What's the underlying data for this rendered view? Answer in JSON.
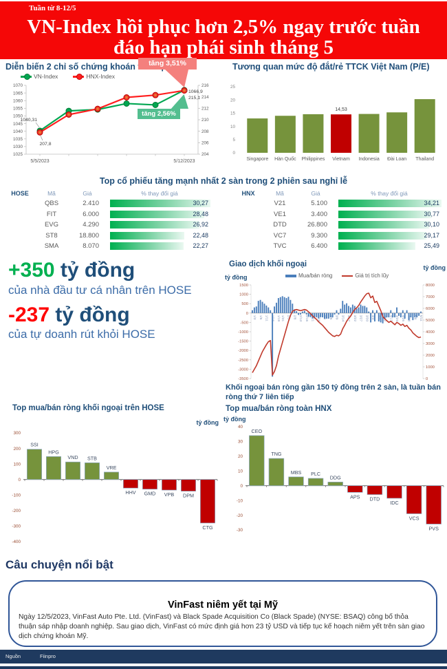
{
  "header": {
    "week_label": "Tuần từ 8-12/5",
    "title_line1": "VN-Index hồi phục hơn 2,5% ngay trước tuần",
    "title_line2": "đáo hạn phái sinh tháng 5"
  },
  "colors": {
    "banner_red": "#F50707",
    "navy": "#1F4E79",
    "green_up": "#00B050",
    "red_down": "#FF0000",
    "olive_bar": "#76933C",
    "highlight_red": "#C00000",
    "flow_bar_blue": "#4A7EBB",
    "flow_line_red": "#C0392B"
  },
  "chart_data": [
    {
      "type": "line",
      "id": "weekly-indices",
      "title": "Diễn biến 2 chỉ số chứng khoán tuần qua",
      "x_labels": [
        "5/5/2023",
        "5/12/2023"
      ],
      "left_axis": {
        "min": 1025,
        "max": 1070,
        "step": 5
      },
      "right_axis": {
        "min": 204,
        "max": 216,
        "step": 2
      },
      "series": [
        {
          "name": "VN-Index",
          "axis": "left",
          "color": "#00A651",
          "values": [
            1040.31,
            1053.3,
            1054.2,
            1058.1,
            1057.2,
            1066.9
          ]
        },
        {
          "name": "HNX-Index",
          "axis": "right",
          "color": "#FF1F1F",
          "values": [
            207.8,
            210.9,
            211.9,
            213.9,
            214.3,
            215.1
          ]
        }
      ],
      "annotations": {
        "start_vn": "1040,31",
        "start_hnx": "207,8",
        "end_vn": "1066,9",
        "end_hnx": "215,1",
        "callout_hnx": "tăng 3,51%",
        "callout_vn": "tăng 2,56%"
      }
    },
    {
      "type": "bar",
      "id": "pe-comparison",
      "title": "Tương quan mức độ đắt/rẻ TTCK Việt Nam (P/E)",
      "categories": [
        "Singapore",
        "Hàn Quốc",
        "Philippines",
        "Vietnam",
        "Indonesia",
        "Đài Loan",
        "Thailand"
      ],
      "values": [
        13.0,
        14.0,
        14.6,
        14.53,
        14.7,
        15.3,
        20.3
      ],
      "highlight_index": 3,
      "highlight_label": "14,53",
      "ylim": [
        0,
        25
      ],
      "step": 5,
      "bar_color": "#76933C",
      "highlight_color": "#C00000"
    },
    {
      "type": "bar+line",
      "id": "foreign-flow",
      "title": "Giao dịch khối ngoại",
      "unit_left": "tỷ đồng",
      "unit_right": "tỷ đồng",
      "legend": [
        "Mua/bán ròng",
        "Giá trị tích lũy"
      ],
      "left_axis": {
        "min": -3500,
        "max": 1500,
        "step": 500
      },
      "right_axis": {
        "min": 0,
        "max": 8000,
        "step": 1000
      },
      "dates": [
        "1/3",
        "1/4",
        "1/5",
        "1/6",
        "1/9",
        "1/10",
        "1/11",
        "1/12",
        "1/13",
        "1/16",
        "1/17",
        "1/18",
        "1/19",
        "1/30",
        "1/31",
        "2/1",
        "2/2",
        "2/3",
        "2/6",
        "2/7",
        "2/8",
        "2/9",
        "2/10",
        "2/13",
        "2/14",
        "2/15",
        "2/16",
        "2/17",
        "2/20",
        "2/21",
        "2/22",
        "2/23",
        "2/24",
        "2/27",
        "2/28",
        "3/1",
        "3/2",
        "3/3",
        "3/6",
        "3/7",
        "3/8",
        "3/9",
        "3/10",
        "3/13",
        "3/14",
        "3/15",
        "3/16",
        "3/17",
        "3/20",
        "3/21",
        "3/22",
        "3/23",
        "3/24",
        "3/27",
        "3/28",
        "3/29",
        "3/30",
        "3/31",
        "4/3",
        "4/4",
        "4/5",
        "4/6",
        "4/7",
        "4/10",
        "4/11",
        "4/12",
        "4/13",
        "4/14",
        "4/17",
        "4/18",
        "4/19",
        "4/20",
        "4/21",
        "4/24",
        "4/25",
        "4/26",
        "4/27",
        "4/28",
        "5/4",
        "5/5",
        "5/8",
        "5/9",
        "5/10",
        "5/11",
        "5/12"
      ],
      "net": [
        150,
        300,
        350,
        650,
        700,
        600,
        500,
        400,
        300,
        150,
        -3400,
        350,
        550,
        800,
        850,
        900,
        850,
        800,
        870,
        700,
        500,
        200,
        100,
        -100,
        -80,
        80,
        120,
        -80,
        -200,
        -220,
        -280,
        -220,
        -230,
        -280,
        -220,
        -230,
        -300,
        -300,
        -300,
        -230,
        -230,
        -80,
        150,
        -80,
        230,
        650,
        450,
        520,
        380,
        300,
        450,
        380,
        230,
        300,
        450,
        380,
        380,
        300,
        80,
        -500,
        150,
        -450,
        150,
        -450,
        -500,
        -550,
        -300,
        -230,
        -230,
        150,
        -230,
        -230,
        300,
        -150,
        -230,
        150,
        -300,
        150,
        -380,
        -230,
        -380,
        -230,
        -230,
        -150,
        80
      ],
      "cumulative": [
        500,
        800,
        1100,
        1500,
        1900,
        2300,
        2600,
        2900,
        3150,
        3250,
        300,
        600,
        1100,
        1900,
        2500,
        3100,
        3700,
        4300,
        4900,
        5400,
        5750,
        5850,
        5900,
        5850,
        5800,
        5850,
        5900,
        5850,
        5700,
        5550,
        5350,
        5200,
        5050,
        4850,
        4700,
        4550,
        4350,
        4150,
        3950,
        3800,
        3650,
        3600,
        3700,
        3650,
        3800,
        4250,
        4550,
        4900,
        5150,
        5350,
        5650,
        5900,
        6050,
        6250,
        6550,
        6800,
        7050,
        7250,
        7300,
        6900,
        7050,
        6500,
        6600,
        6200,
        5800,
        5300,
        5100,
        4950,
        4800,
        4900,
        4750,
        4600,
        4800,
        4700,
        4550,
        4650,
        4450,
        4550,
        4300,
        4150,
        3900,
        3750,
        3600,
        3500,
        3550
      ],
      "visible_x_labels": [
        "1/3",
        "1/6",
        "1/11",
        "1/16",
        "1/19",
        "1/31",
        "2/3",
        "2/8",
        "2/13",
        "2/16",
        "2/21",
        "2/24",
        "3/1",
        "3/6",
        "3/9",
        "3/14",
        "3/17",
        "3/22",
        "3/27",
        "3/30",
        "4/4",
        "4/7",
        "4/12",
        "4/17",
        "4/20",
        "4/25",
        "4/28",
        "5/8",
        "5/11"
      ]
    },
    {
      "type": "bar",
      "id": "top-foreign-hose",
      "title": "Top mua/bán ròng khối ngoại trên HOSE",
      "unit": "tỷ đồng",
      "categories": [
        "SSI",
        "HPG",
        "VND",
        "STB",
        "VRE",
        "HHV",
        "GMD",
        "VPB",
        "DPM",
        "CTG"
      ],
      "values": [
        195,
        148,
        113,
        108,
        48,
        -55,
        -62,
        -68,
        -75,
        -280
      ],
      "ylim": [
        -400,
        300
      ],
      "step": 100,
      "bar_color": "#76933C",
      "neg_color": "#C00000"
    },
    {
      "type": "bar",
      "id": "top-foreign-hnx",
      "title": "Top mua/bán ròng toàn HNX",
      "unit": "tỷ đồng",
      "categories": [
        "CEO",
        "TNG",
        "MBS",
        "PLC",
        "DDG",
        "APS",
        "DTD",
        "IDC",
        "VCS",
        "PVS"
      ],
      "values": [
        34,
        18.5,
        6,
        5,
        2.5,
        -4.5,
        -6,
        -8.5,
        -19,
        -26
      ],
      "ylim": [
        -30,
        40
      ],
      "step": 10,
      "bar_color": "#76933C",
      "neg_color": "#C00000"
    }
  ],
  "tables": {
    "title": "Top cổ phiếu tăng mạnh nhất 2 sàn trong 2 phiên sau nghỉ lễ",
    "hose": {
      "exchange": "HOSE",
      "columns": [
        "Mã",
        "Giá",
        "% thay đổi giá"
      ],
      "rows": [
        {
          "code": "QBS",
          "price": "2.410",
          "pct": "30,27",
          "val": 30.27
        },
        {
          "code": "FIT",
          "price": "6.000",
          "pct": "28,48",
          "val": 28.48
        },
        {
          "code": "EVG",
          "price": "4.290",
          "pct": "26,92",
          "val": 26.92
        },
        {
          "code": "ST8",
          "price": "18.800",
          "pct": "22,48",
          "val": 22.48
        },
        {
          "code": "SMA",
          "price": "8.070",
          "pct": "22,27",
          "val": 22.27
        }
      ]
    },
    "hnx": {
      "exchange": "HNX",
      "columns": [
        "Mã",
        "Giá",
        "% thay đổi giá"
      ],
      "rows": [
        {
          "code": "V21",
          "price": "5.100",
          "pct": "34,21",
          "val": 34.21
        },
        {
          "code": "VE1",
          "price": "3.400",
          "pct": "30,77",
          "val": 30.77
        },
        {
          "code": "DTD",
          "price": "26.800",
          "pct": "30,10",
          "val": 30.1
        },
        {
          "code": "VC7",
          "price": "9.300",
          "pct": "29,17",
          "val": 29.17
        },
        {
          "code": "TVC",
          "price": "6.400",
          "pct": "25,49",
          "val": 25.49
        }
      ]
    }
  },
  "flows": {
    "personal": {
      "value": "+350",
      "unit": "tỷ đồng",
      "desc": "của nhà đầu tư cá nhân trên HOSE"
    },
    "proprietary": {
      "value": "-237",
      "unit": "tỷ đồng",
      "desc": "của tự doanh rút khỏi HOSE"
    }
  },
  "foreign_note": "Khối ngoại bán ròng gần 150 tỷ đồng trên 2 sàn, là tuần bán ròng thứ 7 liên tiếp",
  "story": {
    "heading": "Câu chuyện nổi bật",
    "title": "VinFast niêm yết tại Mỹ",
    "body": "Ngày 12/5/2023, VinFast Auto Pte. Ltd. (VinFast) và Black Spade Acquisition Co (Black Spade) (NYSE: BSAQ) công bố thỏa thuận sáp nhập doanh nghiệp. Sau giao dịch, VinFast có mức định giá hơn 23 tỷ USD và tiếp tục kế hoạch niêm yết trên sàn giao dịch chứng khoán Mỹ."
  },
  "footer": {
    "source_label": "Nguồn",
    "source_value": "Fiinpro"
  }
}
